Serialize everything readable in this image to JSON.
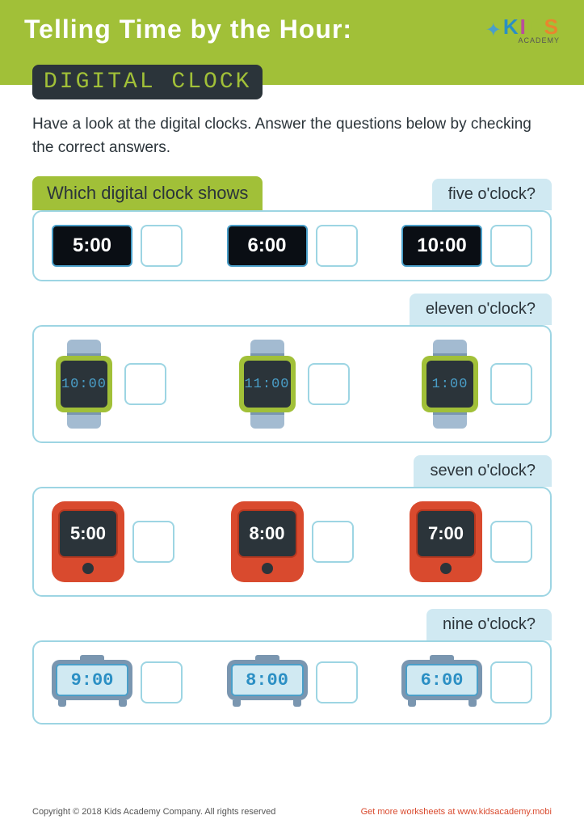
{
  "header": {
    "title": "Telling Time by the Hour:",
    "subtitle": "DIGITAL CLOCK"
  },
  "logo": {
    "brand": "KIDS",
    "sub": "ACADEMY"
  },
  "instructions": "Have a look at the digital clocks. Answer the questions below by checking the correct answers.",
  "prompt": "Which digital clock shows",
  "questions": [
    {
      "target": "five o'clock?",
      "clock_style": "type1",
      "times": [
        "5:00",
        "6:00",
        "10:00"
      ]
    },
    {
      "target": "eleven o'clock?",
      "clock_style": "type2",
      "times": [
        "10:00",
        "11:00",
        "1:00"
      ]
    },
    {
      "target": "seven o'clock?",
      "clock_style": "type3",
      "times": [
        "5:00",
        "8:00",
        "7:00"
      ]
    },
    {
      "target": "nine o'clock?",
      "clock_style": "type4",
      "times": [
        "9:00",
        "8:00",
        "6:00"
      ]
    }
  ],
  "footer": {
    "copyright": "Copyright © 2018 Kids Academy Company. All rights reserved",
    "link": "Get more worksheets at www.kidsacademy.mobi"
  },
  "colors": {
    "accent_green": "#a1c038",
    "dark": "#2b343a",
    "blue_light": "#d0e9f2",
    "blue_border": "#9dd5e3",
    "blue_text": "#2b8fc4",
    "red": "#d94a2e",
    "gray_blue": "#7a96b0"
  }
}
